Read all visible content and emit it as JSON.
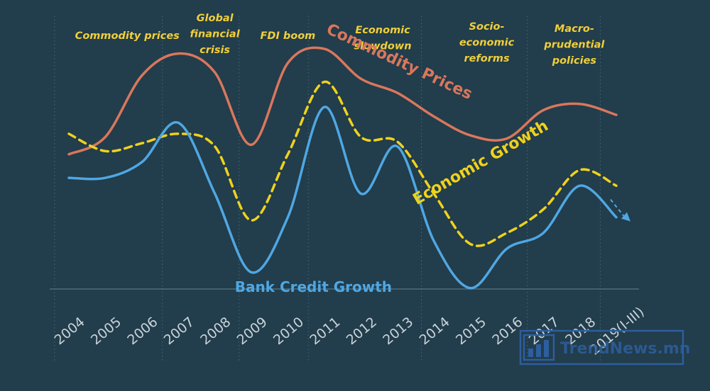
{
  "chart_data": {
    "type": "line",
    "categories": [
      "2004",
      "2005",
      "2006",
      "2007",
      "2008",
      "2009",
      "2010",
      "2011",
      "2012",
      "2013",
      "2014",
      "2015",
      "2016",
      "2017",
      "2018",
      "2019(I-III)"
    ],
    "phases": [
      {
        "lines": [
          "Commodity prices"
        ]
      },
      {
        "lines": [
          "Global",
          "financial",
          "crisis"
        ]
      },
      {
        "lines": [
          "FDI boom"
        ]
      },
      {
        "lines": [
          "Economic",
          "slowdown"
        ]
      },
      {
        "lines": [
          "Socio-",
          "economic",
          "reforms"
        ]
      },
      {
        "lines": [
          "Macro-",
          "prudential",
          "policies"
        ]
      }
    ],
    "series": [
      {
        "name": "Commodity Prices",
        "color": "#d9775c",
        "style": "solid",
        "values": [
          20,
          31,
          70,
          84,
          72,
          26,
          78,
          87,
          68,
          59,
          44,
          32,
          30,
          48,
          52,
          45
        ]
      },
      {
        "name": "Economic Growth",
        "color": "#f0d21c",
        "style": "dashed",
        "values": [
          33,
          22,
          27,
          33,
          25,
          -22,
          20,
          66,
          31,
          28,
          -5,
          -37,
          -30,
          -15,
          10,
          0
        ]
      },
      {
        "name": "Bank Credit Growth",
        "color": "#4fa7e3",
        "style": "solid",
        "values": [
          5,
          5,
          15,
          40,
          -5,
          -55,
          -20,
          50,
          -5,
          25,
          -35,
          -65,
          -40,
          -30,
          0,
          -20
        ]
      }
    ],
    "ylim": [
      -80,
      100
    ],
    "grid": "vertical dotted",
    "legend": "inline labels"
  },
  "watermark": {
    "text": "TrendNews.mn"
  }
}
